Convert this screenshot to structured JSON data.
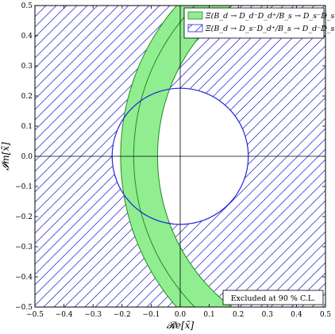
{
  "chart_data": {
    "type": "area",
    "xlabel": "𝓡e[x̃]",
    "ylabel": "𝓘m[x̃]",
    "xlim": [
      -0.5,
      0.5
    ],
    "ylim": [
      -0.5,
      0.5
    ],
    "x_ticks": [
      "−0.5",
      "−0.4",
      "−0.3",
      "−0.2",
      "−0.1",
      "0.0",
      "0.1",
      "0.2",
      "0.3",
      "0.4",
      "0.5"
    ],
    "y_ticks": [
      "0.5",
      "0.4",
      "0.3",
      "0.2",
      "0.1",
      "0.0",
      "−0.1",
      "−0.2",
      "−0.3",
      "−0.4",
      "−0.5"
    ],
    "grid": false,
    "legend_placement": "top-right",
    "series": [
      {
        "name": "Ξ(B_d → D_d⁻D_d⁺/B_s → D_s⁻D_s⁺)",
        "kind": "annular band (allowed region)",
        "color": "#90ee90",
        "edge_color": "#228b22",
        "center": [
          0.54,
          0.0
        ],
        "radius_outer": 0.745,
        "radius_central": 0.7,
        "radius_inner": 0.618
      },
      {
        "name": "Ξ(B_d → D_s⁻D_d⁺/B_s → D_d⁻D_s⁺)",
        "kind": "hatched exclusion outside circle",
        "color": "#2222dd",
        "center": [
          0.0,
          0.0
        ],
        "radius": 0.23
      }
    ],
    "annotations": [
      "Excluded at 90 % C.L."
    ]
  }
}
